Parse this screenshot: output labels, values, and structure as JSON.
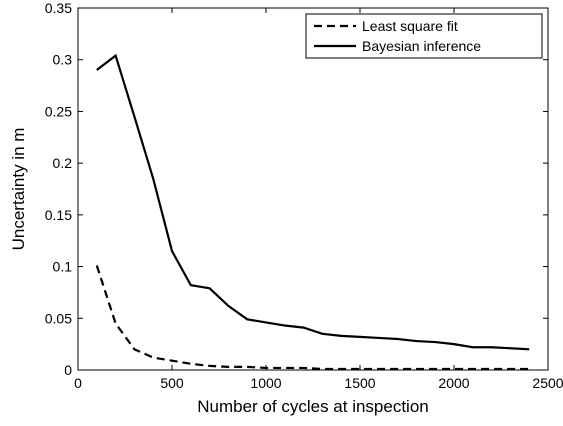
{
  "chart_data": {
    "type": "line",
    "xlabel": "Number of cycles at inspection",
    "ylabel": "Uncertainty in m",
    "x": [
      100,
      200,
      300,
      400,
      500,
      600,
      700,
      800,
      900,
      1000,
      1100,
      1200,
      1300,
      1400,
      1500,
      1600,
      1700,
      1800,
      1900,
      2000,
      2100,
      2200,
      2300,
      2400
    ],
    "series": [
      {
        "name": "Least square fit",
        "color": "#000000",
        "linestyle": "--",
        "values": [
          0.101,
          0.045,
          0.02,
          0.012,
          0.009,
          0.006,
          0.004,
          0.003,
          0.003,
          0.002,
          0.002,
          0.002,
          0.001,
          0.001,
          0.001,
          0.001,
          0.001,
          0.001,
          0.001,
          0.001,
          0.001,
          0.001,
          0.001,
          0.001
        ]
      },
      {
        "name": "Bayesian inference",
        "color": "#000000",
        "linestyle": "-",
        "values": [
          0.29,
          0.304,
          0.245,
          0.185,
          0.115,
          0.082,
          0.079,
          0.062,
          0.049,
          0.046,
          0.043,
          0.041,
          0.035,
          0.033,
          0.032,
          0.031,
          0.03,
          0.028,
          0.027,
          0.025,
          0.022,
          0.022,
          0.021,
          0.02
        ]
      }
    ],
    "xlim": [
      0,
      2500
    ],
    "xticks": [
      0,
      500,
      1000,
      1500,
      2000,
      2500
    ],
    "ylim": [
      0,
      0.35
    ],
    "yticks": [
      0,
      0.05,
      0.1,
      0.15,
      0.2,
      0.25,
      0.3,
      0.35
    ],
    "grid": false,
    "legend": "northeast"
  }
}
